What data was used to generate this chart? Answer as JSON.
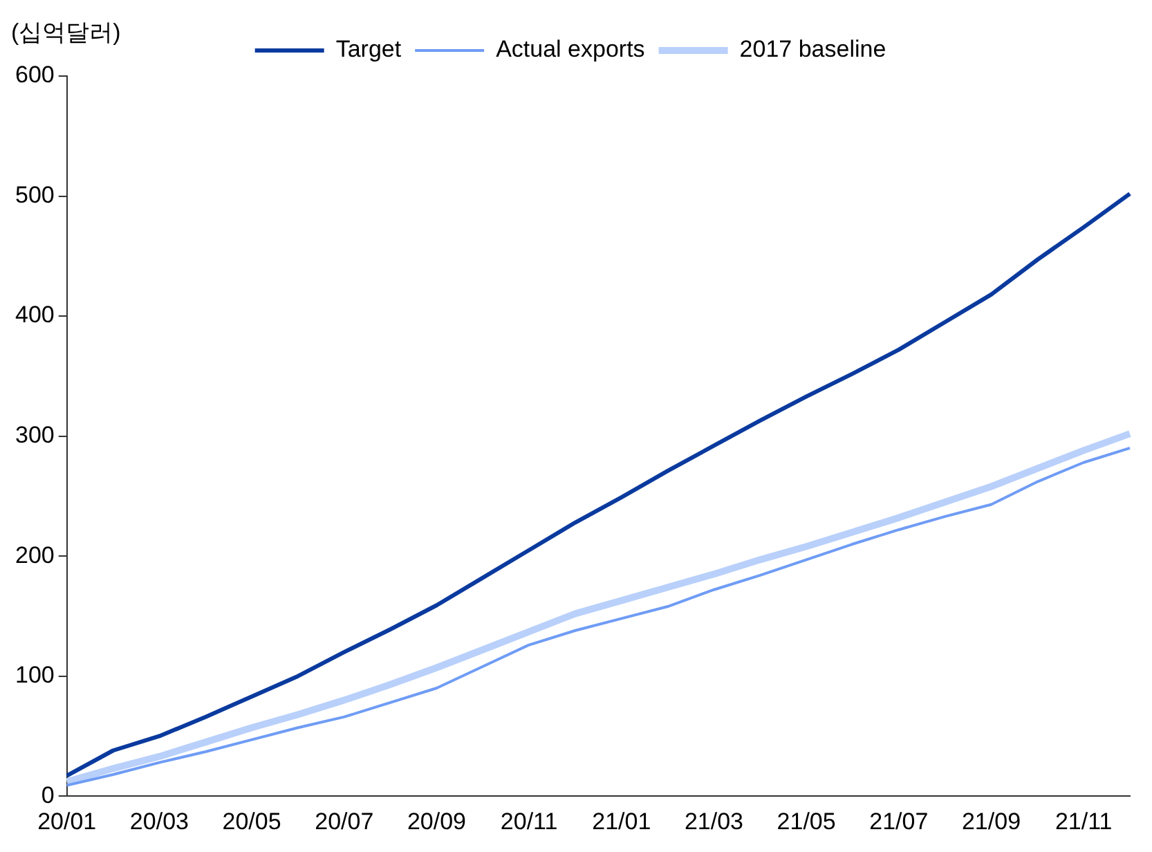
{
  "chart_data": {
    "type": "line",
    "ylabel": "(십억달러)",
    "categories": [
      "20/01",
      null,
      "20/03",
      null,
      "20/05",
      null,
      "20/07",
      null,
      "20/09",
      null,
      "20/11",
      null,
      "21/01",
      null,
      "21/03",
      null,
      "21/05",
      null,
      "21/07",
      null,
      "21/09",
      null,
      "21/11",
      null
    ],
    "series": [
      {
        "name": "Target",
        "color": "#0a3a9e",
        "values": [
          17,
          38,
          50,
          66,
          83,
          100,
          120,
          139,
          159,
          182,
          205,
          228,
          249,
          271,
          292,
          313,
          333,
          352,
          372,
          395,
          418,
          447,
          474,
          502
        ]
      },
      {
        "name": "Actual exports",
        "color": "#6f9cf5",
        "values": [
          9,
          18,
          28,
          37,
          47,
          57,
          66,
          78,
          90,
          108,
          126,
          138,
          148,
          158,
          172,
          184,
          197,
          210,
          222,
          233,
          243,
          262,
          278,
          290
        ]
      },
      {
        "name": "2017 baseline",
        "color": "#b9d0fb",
        "values": [
          12,
          23,
          33,
          45,
          57,
          68,
          80,
          93,
          107,
          122,
          137,
          152,
          163,
          174,
          185,
          197,
          208,
          220,
          232,
          245,
          258,
          273,
          288,
          302
        ]
      }
    ],
    "ylim": [
      0,
      600
    ],
    "yticks": [
      0,
      100,
      200,
      300,
      400,
      500,
      600
    ],
    "grid": false,
    "legend": "top",
    "marker": "none",
    "line_style": "solid"
  }
}
